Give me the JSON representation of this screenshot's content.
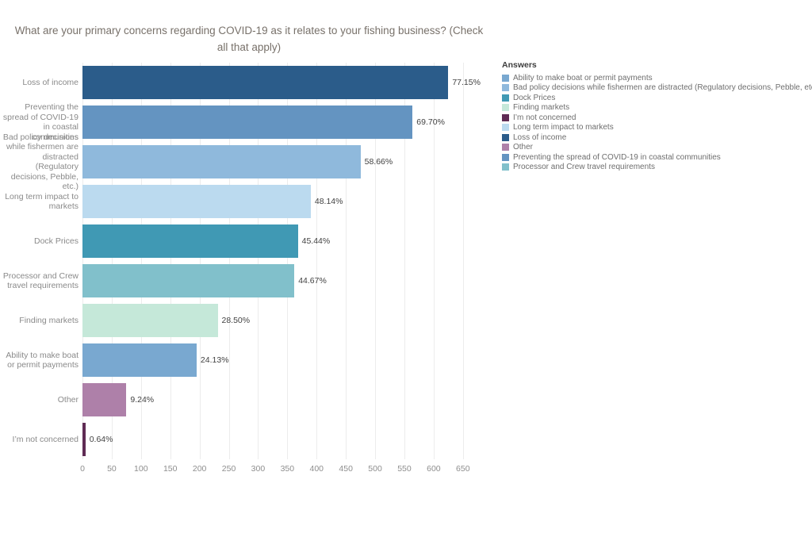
{
  "title": "What are your primary concerns regarding COVID-19 as it relates to your fishing business? (Check all that apply)",
  "chart_data": {
    "type": "bar",
    "orientation": "horizontal",
    "title": "What are your primary concerns regarding COVID-19 as it relates to your fishing business? (Check all that apply)",
    "categories": [
      "Loss of income",
      "Preventing the spread of COVID-19 in coastal communities",
      "Bad policy decisions while fishermen are distracted (Regulatory decisions, Pebble, etc.)",
      "Long term impact to markets",
      "Dock Prices",
      "Processor and Crew travel requirements",
      "Finding markets",
      "Ability to make boat or permit payments",
      "Other",
      "I’m not concerned"
    ],
    "values": [
      625,
      564,
      475,
      390,
      368,
      362,
      231,
      195,
      75,
      5
    ],
    "percent_values": [
      77.15,
      69.7,
      58.66,
      48.14,
      45.44,
      44.67,
      28.5,
      24.13,
      9.24,
      0.64
    ],
    "bar_labels": [
      "77.15%",
      "69.70%",
      "58.66%",
      "48.14%",
      "45.44%",
      "44.67%",
      "28.50%",
      "24.13%",
      "9.24%",
      "0.64%"
    ],
    "colors": [
      "#2b5c8a",
      "#6494c1",
      "#8fb9dc",
      "#bbdaef",
      "#4099b4",
      "#81c0cb",
      "#c5e8d9",
      "#79a8d0",
      "#ae80a9",
      "#5f2b54"
    ],
    "xlabel": "",
    "ylabel": "",
    "xlim": [
      0,
      695
    ],
    "xticks": [
      0,
      50,
      100,
      150,
      200,
      250,
      300,
      350,
      400,
      450,
      500,
      550,
      600,
      650
    ],
    "grid": true,
    "legend_position": "right",
    "legend": {
      "title": "Answers",
      "items": [
        {
          "label": "Ability to make boat or permit payments",
          "color": "#79a8d0"
        },
        {
          "label": "Bad policy decisions while fishermen are distracted (Regulatory decisions, Pebble, etc.)",
          "color": "#8fb9dc"
        },
        {
          "label": "Dock Prices",
          "color": "#4099b4"
        },
        {
          "label": "Finding markets",
          "color": "#c5e8d9"
        },
        {
          "label": "I’m not concerned",
          "color": "#5f2b54"
        },
        {
          "label": "Long term impact to markets",
          "color": "#bbdaef"
        },
        {
          "label": "Loss of income",
          "color": "#2b5c8a"
        },
        {
          "label": "Other",
          "color": "#ae80a9"
        },
        {
          "label": "Preventing the spread of COVID-19 in coastal communities",
          "color": "#6494c1"
        },
        {
          "label": "Processor and Crew travel requirements",
          "color": "#81c0cb"
        }
      ]
    }
  }
}
